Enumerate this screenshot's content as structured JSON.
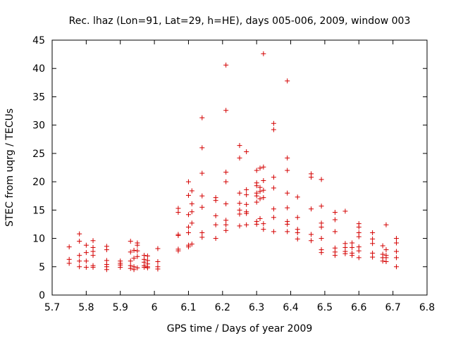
{
  "chart_data": {
    "type": "scatter",
    "title": "Rec. lhaz (Lon=91, Lat=29, h=HE), days 005-006, 2009, window 003",
    "xlabel": "GPS time / Days of year 2009",
    "ylabel": "STEC from uqrg / TECUs",
    "xlim": [
      5.7,
      6.8
    ],
    "ylim": [
      0,
      45
    ],
    "x_ticks": [
      "5.7",
      "5.8",
      "5.9",
      "6",
      "6.1",
      "6.2",
      "6.3",
      "6.4",
      "6.5",
      "6.6",
      "6.7",
      "6.8"
    ],
    "y_ticks": [
      "0",
      "5",
      "10",
      "15",
      "20",
      "25",
      "30",
      "35",
      "40",
      "45"
    ],
    "grid": false,
    "marker": "plus",
    "marker_color": "#d40000",
    "points": [
      [
        5.75,
        8.5
      ],
      [
        5.75,
        6.3
      ],
      [
        5.75,
        5.6
      ],
      [
        5.78,
        10.8
      ],
      [
        5.78,
        9.5
      ],
      [
        5.78,
        7.0
      ],
      [
        5.78,
        6.0
      ],
      [
        5.78,
        5.0
      ],
      [
        5.8,
        8.8
      ],
      [
        5.8,
        7.5
      ],
      [
        5.8,
        6.0
      ],
      [
        5.8,
        4.9
      ],
      [
        5.82,
        9.6
      ],
      [
        5.82,
        8.4
      ],
      [
        5.82,
        7.7
      ],
      [
        5.82,
        7.0
      ],
      [
        5.82,
        5.2
      ],
      [
        5.82,
        4.9
      ],
      [
        5.86,
        8.6
      ],
      [
        5.86,
        8.0
      ],
      [
        5.86,
        6.1
      ],
      [
        5.86,
        5.4
      ],
      [
        5.86,
        5.0
      ],
      [
        5.86,
        4.5
      ],
      [
        5.9,
        6.0
      ],
      [
        5.9,
        5.6
      ],
      [
        5.9,
        5.3
      ],
      [
        5.9,
        4.9
      ],
      [
        5.93,
        9.5
      ],
      [
        5.93,
        7.6
      ],
      [
        5.93,
        6.0
      ],
      [
        5.93,
        5.2
      ],
      [
        5.93,
        4.7
      ],
      [
        5.94,
        7.9
      ],
      [
        5.94,
        6.5
      ],
      [
        5.94,
        5.0
      ],
      [
        5.94,
        4.5
      ],
      [
        5.95,
        9.2
      ],
      [
        5.95,
        8.8
      ],
      [
        5.95,
        7.8
      ],
      [
        5.95,
        6.8
      ],
      [
        5.95,
        4.8
      ],
      [
        5.97,
        7.0
      ],
      [
        5.97,
        6.3
      ],
      [
        5.97,
        5.8
      ],
      [
        5.97,
        5.2
      ],
      [
        5.97,
        4.9
      ],
      [
        5.98,
        6.9
      ],
      [
        5.98,
        6.1
      ],
      [
        5.98,
        5.5
      ],
      [
        5.98,
        5.0
      ],
      [
        5.98,
        4.8
      ],
      [
        6.01,
        8.2
      ],
      [
        6.01,
        5.9
      ],
      [
        6.01,
        5.0
      ],
      [
        6.01,
        4.6
      ],
      [
        6.07,
        15.3
      ],
      [
        6.07,
        14.6
      ],
      [
        6.07,
        10.7
      ],
      [
        6.07,
        10.5
      ],
      [
        6.07,
        8.1
      ],
      [
        6.07,
        7.8
      ],
      [
        6.1,
        20.0
      ],
      [
        6.1,
        17.6
      ],
      [
        6.1,
        14.2
      ],
      [
        6.1,
        12.0
      ],
      [
        6.1,
        11.0
      ],
      [
        6.1,
        8.8
      ],
      [
        6.1,
        8.5
      ],
      [
        6.11,
        18.4
      ],
      [
        6.11,
        16.1
      ],
      [
        6.11,
        14.7
      ],
      [
        6.11,
        12.7
      ],
      [
        6.11,
        9.0
      ],
      [
        6.14,
        31.3
      ],
      [
        6.14,
        26.0
      ],
      [
        6.14,
        21.5
      ],
      [
        6.14,
        17.5
      ],
      [
        6.14,
        15.5
      ],
      [
        6.14,
        11.0
      ],
      [
        6.14,
        10.2
      ],
      [
        6.18,
        17.2
      ],
      [
        6.18,
        16.7
      ],
      [
        6.18,
        14.0
      ],
      [
        6.18,
        12.4
      ],
      [
        6.18,
        10.0
      ],
      [
        6.21,
        40.6
      ],
      [
        6.21,
        32.6
      ],
      [
        6.21,
        21.7
      ],
      [
        6.21,
        20.0
      ],
      [
        6.21,
        16.1
      ],
      [
        6.21,
        13.2
      ],
      [
        6.21,
        12.4
      ],
      [
        6.21,
        11.4
      ],
      [
        6.25,
        26.4
      ],
      [
        6.25,
        24.2
      ],
      [
        6.25,
        18.0
      ],
      [
        6.25,
        16.2
      ],
      [
        6.25,
        15.0
      ],
      [
        6.25,
        14.3
      ],
      [
        6.25,
        12.2
      ],
      [
        6.27,
        25.3
      ],
      [
        6.27,
        18.6
      ],
      [
        6.27,
        17.7
      ],
      [
        6.27,
        16.0
      ],
      [
        6.27,
        14.7
      ],
      [
        6.27,
        14.4
      ],
      [
        6.27,
        12.4
      ],
      [
        6.3,
        22.0
      ],
      [
        6.3,
        19.8
      ],
      [
        6.3,
        19.3
      ],
      [
        6.3,
        18.0
      ],
      [
        6.3,
        17.5
      ],
      [
        6.3,
        16.4
      ],
      [
        6.3,
        13.0
      ],
      [
        6.3,
        12.5
      ],
      [
        6.31,
        22.4
      ],
      [
        6.31,
        19.0
      ],
      [
        6.31,
        18.3
      ],
      [
        6.31,
        17.0
      ],
      [
        6.31,
        13.5
      ],
      [
        6.32,
        42.6
      ],
      [
        6.32,
        22.6
      ],
      [
        6.32,
        20.2
      ],
      [
        6.32,
        18.5
      ],
      [
        6.32,
        17.2
      ],
      [
        6.32,
        12.6
      ],
      [
        6.32,
        11.6
      ],
      [
        6.35,
        30.3
      ],
      [
        6.35,
        29.2
      ],
      [
        6.35,
        20.8
      ],
      [
        6.35,
        18.9
      ],
      [
        6.35,
        15.2
      ],
      [
        6.35,
        13.7
      ],
      [
        6.35,
        11.2
      ],
      [
        6.39,
        37.8
      ],
      [
        6.39,
        24.2
      ],
      [
        6.39,
        22.0
      ],
      [
        6.39,
        18.0
      ],
      [
        6.39,
        15.4
      ],
      [
        6.39,
        13.0
      ],
      [
        6.39,
        12.5
      ],
      [
        6.39,
        11.2
      ],
      [
        6.42,
        17.3
      ],
      [
        6.42,
        13.7
      ],
      [
        6.42,
        11.6
      ],
      [
        6.42,
        11.0
      ],
      [
        6.42,
        9.9
      ],
      [
        6.46,
        21.4
      ],
      [
        6.46,
        20.8
      ],
      [
        6.46,
        15.2
      ],
      [
        6.46,
        10.7
      ],
      [
        6.46,
        9.6
      ],
      [
        6.49,
        20.4
      ],
      [
        6.49,
        15.7
      ],
      [
        6.49,
        12.7
      ],
      [
        6.49,
        12.0
      ],
      [
        6.49,
        10.0
      ],
      [
        6.49,
        8.0
      ],
      [
        6.49,
        7.5
      ],
      [
        6.53,
        14.6
      ],
      [
        6.53,
        13.3
      ],
      [
        6.53,
        11.2
      ],
      [
        6.53,
        8.3
      ],
      [
        6.53,
        7.6
      ],
      [
        6.53,
        7.0
      ],
      [
        6.56,
        14.8
      ],
      [
        6.56,
        9.1
      ],
      [
        6.56,
        8.4
      ],
      [
        6.56,
        7.7
      ],
      [
        6.56,
        7.3
      ],
      [
        6.58,
        9.2
      ],
      [
        6.58,
        8.4
      ],
      [
        6.58,
        7.4
      ],
      [
        6.58,
        7.0
      ],
      [
        6.6,
        12.6
      ],
      [
        6.6,
        12.0
      ],
      [
        6.6,
        11.0
      ],
      [
        6.6,
        10.3
      ],
      [
        6.6,
        8.5
      ],
      [
        6.6,
        7.8
      ],
      [
        6.6,
        6.6
      ],
      [
        6.64,
        11.0
      ],
      [
        6.64,
        9.9
      ],
      [
        6.64,
        9.1
      ],
      [
        6.64,
        7.4
      ],
      [
        6.64,
        6.7
      ],
      [
        6.67,
        8.7
      ],
      [
        6.67,
        7.2
      ],
      [
        6.67,
        6.6
      ],
      [
        6.67,
        6.0
      ],
      [
        6.68,
        12.4
      ],
      [
        6.68,
        8.0
      ],
      [
        6.68,
        7.0
      ],
      [
        6.68,
        6.6
      ],
      [
        6.68,
        5.9
      ],
      [
        6.71,
        10.0
      ],
      [
        6.71,
        9.2
      ],
      [
        6.71,
        7.7
      ],
      [
        6.71,
        6.6
      ],
      [
        6.71,
        5.0
      ]
    ]
  }
}
